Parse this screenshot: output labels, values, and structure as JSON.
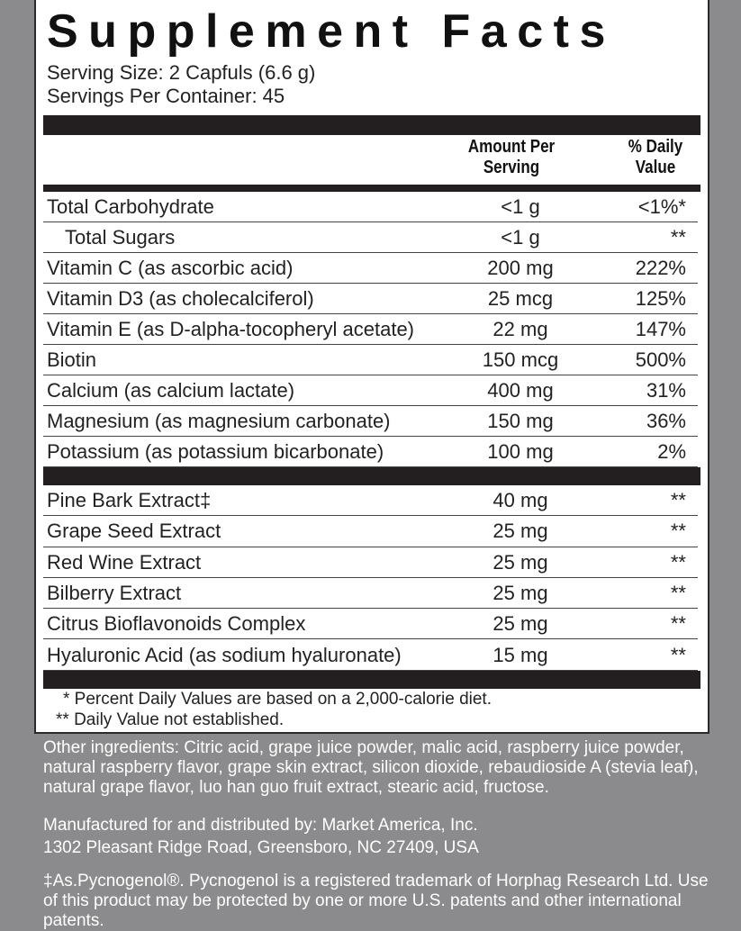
{
  "header": {
    "title": "Supplement Facts",
    "serving_size": "Serving Size: 2 Capfuls (6.6 g)",
    "servings_per_container": "Servings Per Container: 45"
  },
  "table": {
    "columns": [
      "Amount Per Serving",
      "% Daily Value"
    ],
    "sections": [
      {
        "rows": [
          {
            "name": "Total Carbohydrate",
            "amount": "<1 g",
            "dv": "<1%*"
          },
          {
            "name": "Total Sugars",
            "amount": "<1 g",
            "dv": "**",
            "indent": true
          },
          {
            "name": "Vitamin C (as ascorbic acid)",
            "amount": "200 mg",
            "dv": "222%"
          },
          {
            "name": "Vitamin D3 (as cholecalciferol)",
            "amount": "25 mcg",
            "dv": "125%"
          },
          {
            "name": "Vitamin E (as D-alpha-tocopheryl acetate)",
            "amount": "22 mg",
            "dv": "147%"
          },
          {
            "name": "Biotin",
            "amount": "150 mcg",
            "dv": "500%"
          },
          {
            "name": "Calcium (as calcium lactate)",
            "amount": "400 mg",
            "dv": "31%"
          },
          {
            "name": "Magnesium (as magnesium carbonate)",
            "amount": "150 mg",
            "dv": "36%"
          },
          {
            "name": "Potassium (as potassium bicarbonate)",
            "amount": "100 mg",
            "dv": "2%"
          }
        ]
      },
      {
        "rows": [
          {
            "name": "Pine Bark Extract‡",
            "amount": "40 mg",
            "dv": "**"
          },
          {
            "name": "Grape Seed Extract",
            "amount": "25 mg",
            "dv": "**"
          },
          {
            "name": "Red Wine Extract",
            "amount": "25 mg",
            "dv": "**"
          },
          {
            "name": "Bilberry Extract",
            "amount": "25 mg",
            "dv": "**"
          },
          {
            "name": "Citrus Bioflavonoids Complex",
            "amount": "25 mg",
            "dv": "**"
          },
          {
            "name": "Hyaluronic Acid (as sodium hyaluronate)",
            "amount": "15 mg",
            "dv": "**"
          }
        ]
      }
    ]
  },
  "footnotes": [
    "* Percent Daily Values are based on a 2,000-calorie diet.",
    "** Daily Value not established."
  ],
  "other_ingredients": "Other ingredients: Citric acid, grape juice powder, malic acid, raspberry juice powder, natural raspberry flavor, grape skin extract, silicon dioxide, rebaudioside A (stevia leaf), natural grape flavor, luo han guo fruit extract, stearic acid, fructose.",
  "manufacturer": [
    "Manufactured for and distributed by: Market America, Inc.",
    "1302 Pleasant Ridge Road, Greensboro, NC 27409, USA"
  ],
  "trademark_note": "‡As.Pycnogenol®. Pycnogenol is a registered trademark of Horphag Research Ltd. Use of this product may be protected by one or more U.S. patents and other international patents."
}
